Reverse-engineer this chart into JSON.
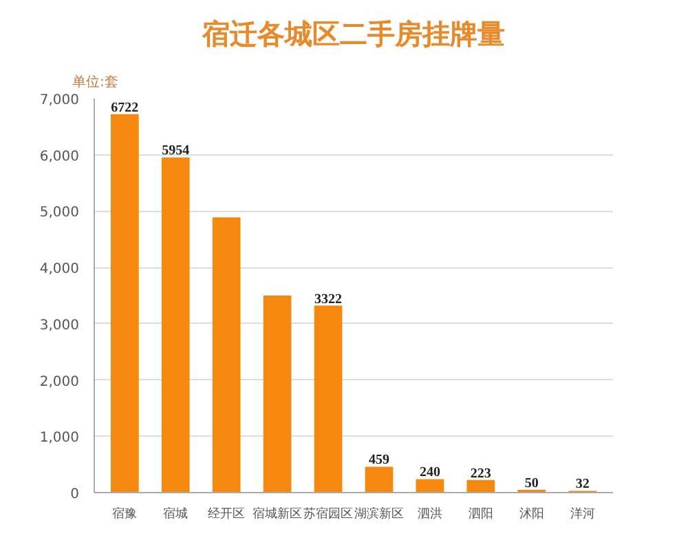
{
  "chart_data": {
    "type": "bar",
    "title": "宿迁各城区二手房挂牌量",
    "ylabel": "单位:套",
    "categories": [
      "宿豫",
      "宿城",
      "经开区",
      "宿城新区",
      "苏宿园区",
      "湖滨新区",
      "泗洪",
      "泗阳",
      "沭阳",
      "洋河"
    ],
    "values": [
      6722,
      5954,
      4890,
      3500,
      3322,
      459,
      240,
      223,
      50,
      32
    ],
    "value_labels": [
      "6722",
      "5954",
      null,
      null,
      "3322",
      "459",
      "240",
      "223",
      "50",
      "32"
    ],
    "color": "#f5890f",
    "ylim": [
      0,
      7000
    ],
    "yticks": [
      {
        "value": 0,
        "label": "0"
      },
      {
        "value": 1000,
        "label": "1,000"
      },
      {
        "value": 2000,
        "label": "2,000"
      },
      {
        "value": 3000,
        "label": "3,000"
      },
      {
        "value": 4000,
        "label": "4,000"
      },
      {
        "value": 5000,
        "label": "5,000"
      },
      {
        "value": 6000,
        "label": "6,000"
      },
      {
        "value": 7000,
        "label": "7,000"
      }
    ],
    "grid": "y"
  }
}
